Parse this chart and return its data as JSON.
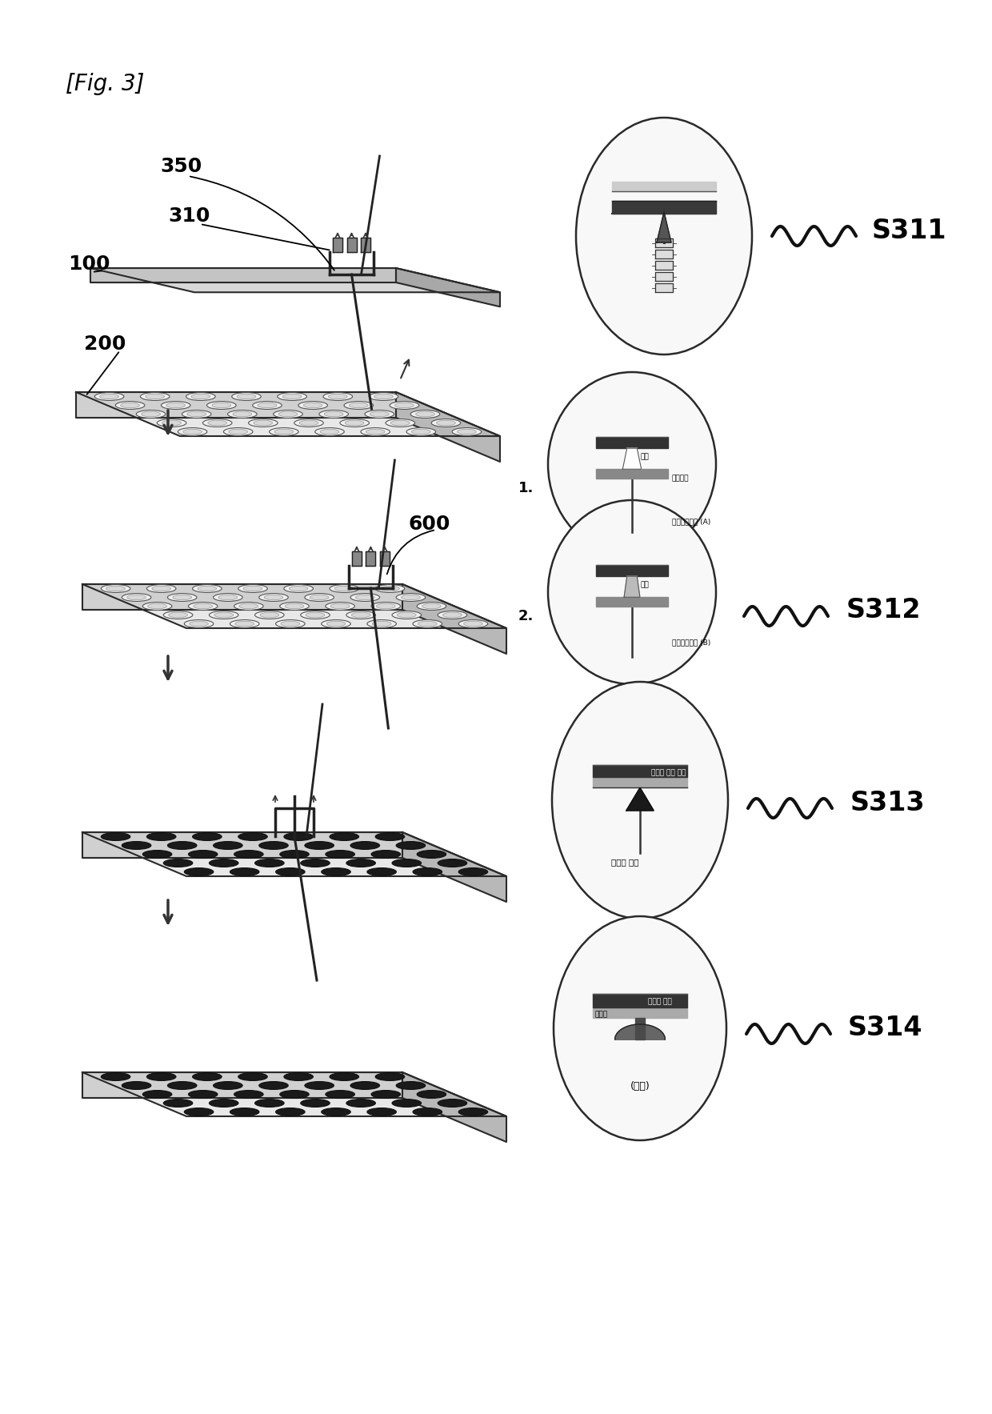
{
  "fig_label": "[Fig. 3]",
  "bg_color": "#ffffff",
  "step_labels": [
    "S311",
    "S312",
    "S313",
    "S314"
  ],
  "plate_top_color": "#e8e8e8",
  "plate_right_color": "#b8b8b8",
  "plate_bottom_color": "#d0d0d0",
  "plate_edge_color": "#2a2a2a",
  "hole_open_face": "#f0f0f0",
  "hole_open_edge": "#555555",
  "hole_filled_face": "#1a1a1a",
  "hole_filled_edge": "#111111",
  "oval_bg": "#f8f8f8",
  "oval_edge": "#2a2a2a",
  "label_color": "#000000",
  "wavy_color": "#111111",
  "step_label_fontsize": 24,
  "ref_fontsize": 18,
  "fig_fontsize": 20
}
